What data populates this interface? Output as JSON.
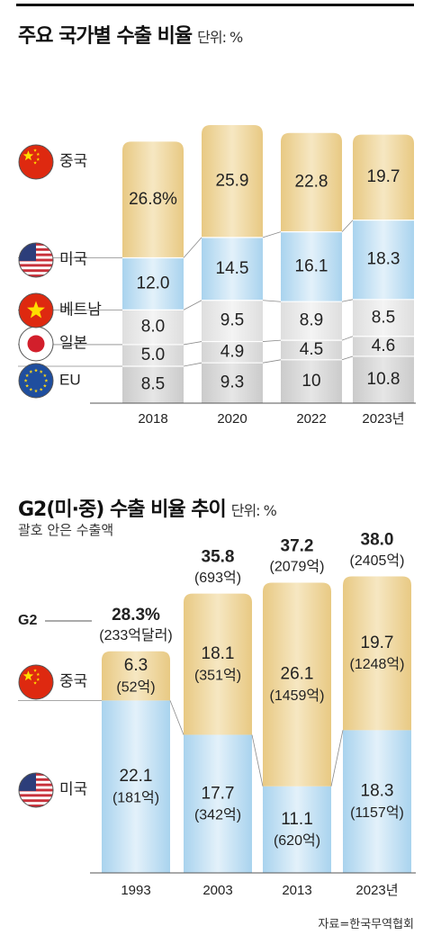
{
  "chart1": {
    "title": "주요 국가별 수출 비율",
    "unit": "단위: %",
    "chart_data": {
      "type": "bar",
      "stacked": true,
      "categories": [
        "2018",
        "2020",
        "2022",
        "2023년"
      ],
      "series": [
        {
          "name": "EU",
          "values": [
            8.5,
            9.3,
            10,
            10.8
          ],
          "labels": [
            "8.5",
            "9.3",
            "10",
            "10.8"
          ]
        },
        {
          "name": "일본",
          "values": [
            5.0,
            4.9,
            4.5,
            4.6
          ],
          "labels": [
            "5.0",
            "4.9",
            "4.5",
            "4.6"
          ]
        },
        {
          "name": "베트남",
          "values": [
            8.0,
            9.5,
            8.9,
            8.5
          ],
          "labels": [
            "8.0",
            "9.5",
            "8.9",
            "8.5"
          ]
        },
        {
          "name": "미국",
          "values": [
            12.0,
            14.5,
            16.1,
            18.3
          ],
          "labels": [
            "12.0",
            "14.5",
            "16.1",
            "18.3"
          ]
        },
        {
          "name": "중국",
          "values": [
            26.8,
            25.9,
            22.8,
            19.7
          ],
          "labels": [
            "26.8%",
            "25.9",
            "22.8",
            "19.7"
          ]
        }
      ],
      "legend_position": "left"
    }
  },
  "chart2": {
    "title": "G2(미·중) 수출 비율 추이",
    "unit": "단위: %",
    "note": "괄호 안은 수출액",
    "g2_label": "G2",
    "chart_data": {
      "type": "bar",
      "stacked": true,
      "categories": [
        "1993",
        "2003",
        "2013",
        "2023년"
      ],
      "series": [
        {
          "name": "미국",
          "values": [
            22.1,
            17.7,
            11.1,
            18.3
          ],
          "amounts": [
            "(181억)",
            "(342억)",
            "(620억)",
            "(1157억)"
          ]
        },
        {
          "name": "중국",
          "values": [
            6.3,
            18.1,
            26.1,
            19.7
          ],
          "amounts": [
            "(52억)",
            "(351억)",
            "(1459억)",
            "(1248억)"
          ]
        }
      ],
      "totals": [
        "28.3%",
        "35.8",
        "37.2",
        "38.0"
      ],
      "total_amounts": [
        "(233억달러)",
        "(693억)",
        "(2079억)",
        "(2405억)"
      ],
      "legend_position": "left"
    }
  },
  "source": "자료=한국무역협회",
  "colors": {
    "china": "#e8c983",
    "usa": "#a9d3ee",
    "vietnam": "#dedede",
    "japan": "#d4d4d4",
    "eu": "#cbcbcb",
    "flag_china": "#de2910",
    "flag_eu": "#1f4e9e"
  }
}
